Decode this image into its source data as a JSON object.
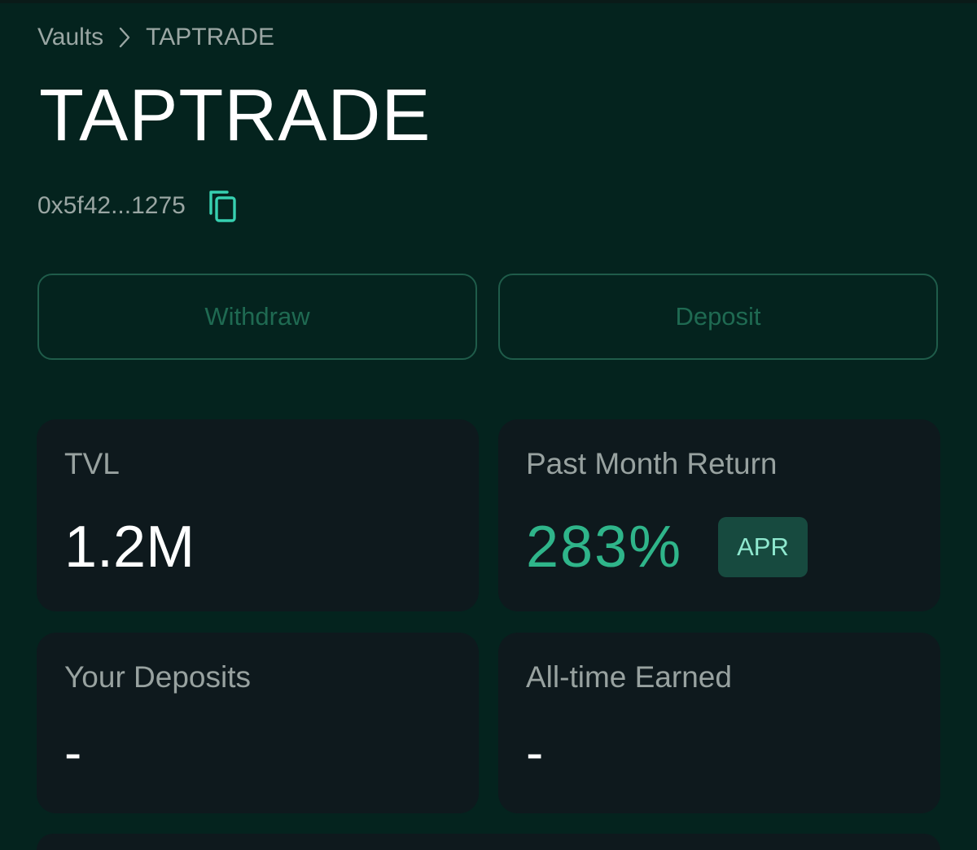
{
  "breadcrumb": {
    "root": "Vaults",
    "current": "TAPTRADE"
  },
  "vault": {
    "title": "TAPTRADE",
    "address": "0x5f42...1275"
  },
  "actions": {
    "withdraw_label": "Withdraw",
    "deposit_label": "Deposit"
  },
  "stats": {
    "tvl": {
      "label": "TVL",
      "value": "1.2M"
    },
    "past_month_return": {
      "label": "Past Month Return",
      "value": "283%",
      "badge": "APR"
    },
    "your_deposits": {
      "label": "Your Deposits",
      "value": "-"
    },
    "all_time_earned": {
      "label": "All-time Earned",
      "value": "-"
    }
  },
  "icons": {
    "breadcrumb_separator": "chevron-right-icon",
    "copy": "copy-icon"
  },
  "colors": {
    "background": "#04231e",
    "card": "#0e191d",
    "accent": "#2fb58a",
    "copy_icon": "#37d0b0",
    "button_border": "#1f5c4a",
    "badge_bg": "#174a3f"
  }
}
